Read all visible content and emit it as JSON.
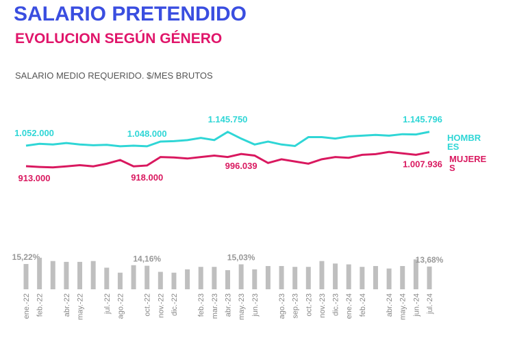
{
  "chart_data": [
    {
      "type": "line",
      "title": "SALARIO PRETENDIDO",
      "subtitle": "EVOLUCION SEGÚN GÉNERO",
      "y_label": "SALARIO MEDIO REQUERIDO. $/MES BRUTOS",
      "ylim": [
        700000,
        1300000
      ],
      "series": [
        {
          "name": "HOMBRES",
          "color": "#2fd6d6",
          "values": [
            1052000,
            1065000,
            1060000,
            1070000,
            1060000,
            1055000,
            1058000,
            1048000,
            1052000,
            1048000,
            1080000,
            1083000,
            1090000,
            1105000,
            1090000,
            1145750,
            1100000,
            1060000,
            1080000,
            1060000,
            1050000,
            1110000,
            1110000,
            1100000,
            1115000,
            1120000,
            1125000,
            1120000,
            1130000,
            1128000,
            1145796
          ],
          "value_labels": [
            "1.052.000",
            null,
            null,
            null,
            null,
            null,
            null,
            null,
            null,
            "1.048.000",
            null,
            null,
            null,
            null,
            null,
            "1.145.750",
            null,
            null,
            null,
            null,
            null,
            null,
            null,
            null,
            null,
            null,
            null,
            null,
            null,
            null,
            "1.145.796"
          ]
        },
        {
          "name": "MUJERES",
          "color": "#d9185f",
          "values": [
            913000,
            908000,
            905000,
            912000,
            920000,
            912000,
            930000,
            955000,
            912000,
            918000,
            975000,
            972000,
            965000,
            975000,
            985000,
            975000,
            996039,
            985000,
            935000,
            960000,
            945000,
            930000,
            960000,
            975000,
            970000,
            990000,
            995000,
            1010000,
            1000000,
            990000,
            1007936
          ],
          "value_labels": [
            "913.000",
            null,
            null,
            null,
            null,
            null,
            null,
            null,
            null,
            "918.000",
            null,
            null,
            null,
            null,
            null,
            null,
            "996.039",
            null,
            null,
            null,
            null,
            null,
            null,
            null,
            null,
            null,
            null,
            null,
            null,
            null,
            "1.007.936"
          ]
        }
      ]
    },
    {
      "type": "bar",
      "color": "#bfbfbf",
      "ylim": [
        0,
        20
      ],
      "categories": [
        "ene.-22",
        "feb.-22",
        null,
        "abr.-22",
        "may.-22",
        null,
        "jul.-22",
        "ago.-22",
        null,
        "oct.-22",
        "nov.-22",
        "dic.-22",
        null,
        "feb.-23",
        "mar.-23",
        "abr.-23",
        "may.-23",
        "jun.-23",
        null,
        "ago.-23",
        "sep.-23",
        "oct.-23",
        "nov.-23",
        "dic.-23",
        "ene.-24",
        "feb.-24",
        null,
        "abr.-24",
        "may.-24",
        "jun.-24",
        "jul.-24"
      ],
      "values": [
        15.22,
        19,
        17,
        16.5,
        16.5,
        17,
        13,
        10,
        14.5,
        14.16,
        10.5,
        10,
        12,
        13.5,
        13.5,
        11.5,
        15.03,
        12,
        14,
        14,
        13.5,
        13.5,
        17,
        15.5,
        15,
        13.5,
        14,
        12.5,
        14,
        18,
        13.68
      ],
      "value_labels": [
        "15,22%",
        null,
        null,
        null,
        null,
        null,
        null,
        null,
        null,
        "14,16%",
        null,
        null,
        null,
        null,
        null,
        null,
        "15,03%",
        null,
        null,
        null,
        null,
        null,
        null,
        null,
        null,
        null,
        null,
        null,
        null,
        null,
        "13,68%"
      ]
    }
  ]
}
